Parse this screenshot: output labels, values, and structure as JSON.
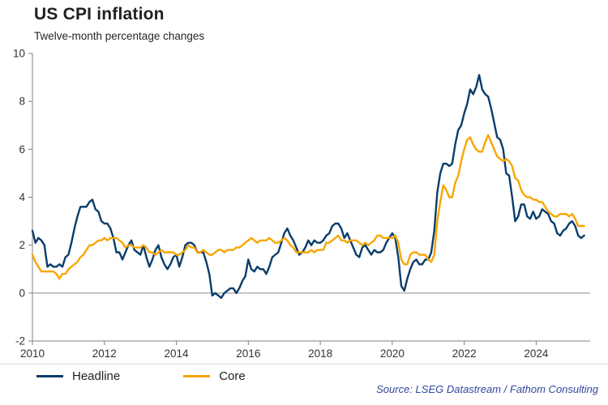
{
  "title": "US CPI inflation",
  "subtitle": "Twelve-month percentage changes",
  "source": "Source: LSEG Datastream / Fathom Consulting",
  "colors": {
    "headline": "#0a3d6b",
    "core": "#f7a600",
    "axis": "#808080",
    "zero_line": "#8c8c8c",
    "tick_text": "#333333"
  },
  "chart_data": {
    "type": "line",
    "title": "US CPI inflation",
    "subtitle": "Twelve-month percentage changes",
    "xlabel": "",
    "ylabel": "",
    "x_start": 2010,
    "x_step": 0.0833333,
    "xlim": [
      2010,
      2025.5
    ],
    "ylim": [
      -2,
      10
    ],
    "xticks": [
      2010,
      2012,
      2014,
      2016,
      2018,
      2020,
      2022,
      2024
    ],
    "yticks": [
      -2,
      0,
      2,
      4,
      6,
      8,
      10
    ],
    "zero_line": 0,
    "grid": false,
    "legend_position": "bottom-left",
    "series": [
      {
        "name": "Headline",
        "color": "#0a3d6b",
        "values": [
          2.6,
          2.1,
          2.3,
          2.2,
          2.0,
          1.1,
          1.2,
          1.1,
          1.1,
          1.2,
          1.1,
          1.5,
          1.6,
          2.1,
          2.7,
          3.2,
          3.6,
          3.6,
          3.6,
          3.8,
          3.9,
          3.5,
          3.4,
          3.0,
          2.9,
          2.9,
          2.7,
          2.3,
          1.7,
          1.7,
          1.4,
          1.7,
          2.0,
          2.2,
          1.8,
          1.7,
          1.6,
          2.0,
          1.5,
          1.1,
          1.4,
          1.8,
          2.0,
          1.5,
          1.2,
          1.0,
          1.2,
          1.5,
          1.6,
          1.1,
          1.5,
          2.0,
          2.1,
          2.1,
          2.0,
          1.7,
          1.7,
          1.7,
          1.3,
          0.8,
          -0.1,
          0.0,
          -0.1,
          -0.2,
          0.0,
          0.1,
          0.2,
          0.2,
          0.0,
          0.2,
          0.5,
          0.7,
          1.4,
          1.0,
          0.9,
          1.1,
          1.0,
          1.0,
          0.8,
          1.1,
          1.5,
          1.6,
          1.7,
          2.1,
          2.5,
          2.7,
          2.4,
          2.2,
          1.9,
          1.6,
          1.7,
          1.9,
          2.2,
          2.0,
          2.2,
          2.1,
          2.1,
          2.2,
          2.4,
          2.5,
          2.8,
          2.9,
          2.9,
          2.7,
          2.3,
          2.5,
          2.2,
          1.9,
          1.6,
          1.5,
          1.9,
          2.0,
          1.8,
          1.6,
          1.8,
          1.7,
          1.7,
          1.8,
          2.1,
          2.3,
          2.5,
          2.3,
          1.5,
          0.3,
          0.1,
          0.6,
          1.0,
          1.3,
          1.4,
          1.2,
          1.2,
          1.4,
          1.4,
          1.7,
          2.6,
          4.2,
          5.0,
          5.4,
          5.4,
          5.3,
          5.4,
          6.2,
          6.8,
          7.0,
          7.5,
          7.9,
          8.5,
          8.3,
          8.6,
          9.1,
          8.5,
          8.3,
          8.2,
          7.7,
          7.1,
          6.5,
          6.4,
          6.0,
          5.0,
          4.9,
          4.0,
          3.0,
          3.2,
          3.7,
          3.7,
          3.2,
          3.1,
          3.4,
          3.1,
          3.2,
          3.5,
          3.4,
          3.3,
          3.0,
          2.9,
          2.5,
          2.4,
          2.6,
          2.7,
          2.9,
          3.0,
          2.8,
          2.4,
          2.3,
          2.4
        ]
      },
      {
        "name": "Core",
        "color": "#f7a600",
        "values": [
          1.6,
          1.3,
          1.1,
          0.9,
          0.9,
          0.9,
          0.9,
          0.9,
          0.8,
          0.6,
          0.8,
          0.8,
          1.0,
          1.1,
          1.2,
          1.3,
          1.5,
          1.6,
          1.8,
          2.0,
          2.0,
          2.1,
          2.2,
          2.2,
          2.3,
          2.2,
          2.3,
          2.3,
          2.3,
          2.2,
          2.1,
          1.9,
          2.0,
          2.0,
          1.9,
          1.9,
          1.9,
          2.0,
          1.9,
          1.7,
          1.7,
          1.6,
          1.7,
          1.8,
          1.7,
          1.7,
          1.7,
          1.7,
          1.6,
          1.6,
          1.7,
          1.8,
          2.0,
          1.9,
          1.9,
          1.7,
          1.7,
          1.8,
          1.7,
          1.6,
          1.6,
          1.7,
          1.8,
          1.8,
          1.7,
          1.8,
          1.8,
          1.8,
          1.9,
          1.9,
          2.0,
          2.1,
          2.2,
          2.3,
          2.2,
          2.1,
          2.2,
          2.2,
          2.2,
          2.3,
          2.2,
          2.1,
          2.1,
          2.2,
          2.3,
          2.2,
          2.0,
          1.9,
          1.7,
          1.7,
          1.7,
          1.7,
          1.7,
          1.8,
          1.7,
          1.8,
          1.8,
          1.8,
          2.1,
          2.1,
          2.2,
          2.3,
          2.4,
          2.2,
          2.2,
          2.1,
          2.2,
          2.2,
          2.2,
          2.1,
          2.0,
          2.1,
          2.0,
          2.1,
          2.2,
          2.4,
          2.4,
          2.3,
          2.3,
          2.3,
          2.3,
          2.4,
          2.1,
          1.4,
          1.2,
          1.2,
          1.6,
          1.7,
          1.7,
          1.6,
          1.6,
          1.6,
          1.4,
          1.3,
          1.6,
          3.0,
          3.8,
          4.5,
          4.3,
          4.0,
          4.0,
          4.6,
          4.9,
          5.5,
          6.0,
          6.4,
          6.5,
          6.2,
          6.0,
          5.9,
          5.9,
          6.3,
          6.6,
          6.3,
          6.0,
          5.7,
          5.6,
          5.5,
          5.6,
          5.5,
          5.3,
          4.8,
          4.7,
          4.3,
          4.1,
          4.0,
          4.0,
          3.9,
          3.9,
          3.8,
          3.8,
          3.6,
          3.4,
          3.3,
          3.2,
          3.2,
          3.3,
          3.3,
          3.3,
          3.2,
          3.3,
          3.1,
          2.8,
          2.8,
          2.8
        ]
      }
    ]
  }
}
